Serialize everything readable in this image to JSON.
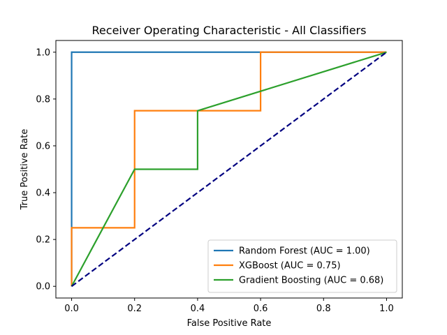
{
  "chart_data": {
    "type": "line",
    "title": "Receiver Operating Characteristic - All Classifiers",
    "xlabel": "False Positive Rate",
    "ylabel": "True Positive Rate",
    "xlim": [
      -0.05,
      1.05
    ],
    "ylim": [
      -0.05,
      1.05
    ],
    "xticks": [
      0.0,
      0.2,
      0.4,
      0.6,
      0.8,
      1.0
    ],
    "yticks": [
      0.0,
      0.2,
      0.4,
      0.6,
      0.8,
      1.0
    ],
    "xtick_labels": [
      "0.0",
      "0.2",
      "0.4",
      "0.6",
      "0.8",
      "1.0"
    ],
    "ytick_labels": [
      "0.0",
      "0.2",
      "0.4",
      "0.6",
      "0.8",
      "1.0"
    ],
    "grid": false,
    "legend_position": "lower-right",
    "series": [
      {
        "name": "Random Forest (AUC = 1.00)",
        "color": "#1f77b4",
        "style": "solid",
        "x": [
          0.0,
          0.0,
          0.0,
          1.0
        ],
        "y": [
          0.0,
          0.25,
          1.0,
          1.0
        ]
      },
      {
        "name": "XGBoost (AUC = 0.75)",
        "color": "#ff7f0e",
        "style": "solid",
        "x": [
          0.0,
          0.0,
          0.2,
          0.2,
          0.6,
          0.6,
          1.0
        ],
        "y": [
          0.0,
          0.25,
          0.25,
          0.75,
          0.75,
          1.0,
          1.0
        ]
      },
      {
        "name": "Gradient Boosting (AUC = 0.68)",
        "color": "#2ca02c",
        "style": "solid",
        "x": [
          0.0,
          0.2,
          0.4,
          0.4,
          1.0
        ],
        "y": [
          0.0,
          0.5,
          0.5,
          0.75,
          1.0
        ]
      }
    ],
    "reference_line": {
      "color": "#000080",
      "style": "dashed",
      "x": [
        0.0,
        1.0
      ],
      "y": [
        0.0,
        1.0
      ]
    }
  }
}
